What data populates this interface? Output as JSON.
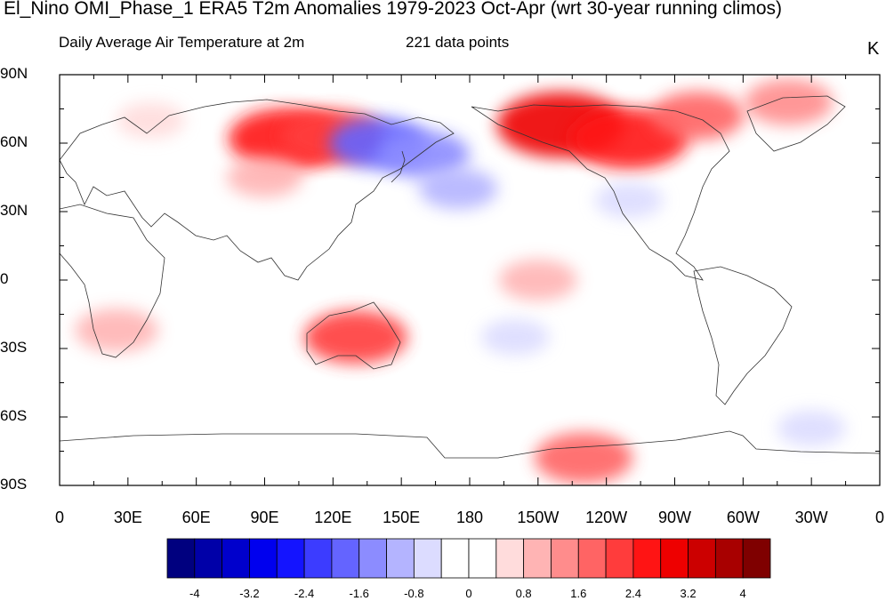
{
  "title": "El_Nino OMI_Phase_1 ERA5 T2m Anomalies 1979-2023 Oct-Apr (wrt 30-year running climos)",
  "subtitle_left": "Daily Average Air Temperature at 2m",
  "subtitle_center": "221 data points",
  "units": "K",
  "lat_ticks": [
    "90N",
    "60N",
    "30N",
    "0",
    "30S",
    "60S",
    "90S"
  ],
  "lon_ticks": [
    "0",
    "30E",
    "60E",
    "90E",
    "120E",
    "150E",
    "180",
    "150W",
    "120W",
    "90W",
    "60W",
    "30W",
    "0"
  ],
  "colorbar": {
    "colors": [
      "#00007f",
      "#0000a8",
      "#0000cc",
      "#0000ee",
      "#1414ff",
      "#3c3cff",
      "#6464ff",
      "#8c8cff",
      "#b4b4ff",
      "#dcdcff",
      "#ffffff",
      "#ffffff",
      "#ffdcdc",
      "#ffb4b4",
      "#ff8c8c",
      "#ff6464",
      "#ff3c3c",
      "#ff1414",
      "#ee0000",
      "#cc0000",
      "#a80000",
      "#7f0000"
    ],
    "labels": [
      "-4",
      "-3.2",
      "-2.4",
      "-1.6",
      "-0.8",
      "0",
      "0.8",
      "1.6",
      "2.4",
      "3.2",
      "4"
    ]
  },
  "anomalies": [
    {
      "lon": 40,
      "lat": 70,
      "value": 0.6
    },
    {
      "lon": 100,
      "lat": 62,
      "value": 2.6
    },
    {
      "lon": 120,
      "lat": 63,
      "value": 2.0
    },
    {
      "lon": 90,
      "lat": 45,
      "value": 0.9
    },
    {
      "lon": 140,
      "lat": 60,
      "value": -1.8
    },
    {
      "lon": 160,
      "lat": 55,
      "value": -1.5
    },
    {
      "lon": 175,
      "lat": 40,
      "value": -1.0
    },
    {
      "lon": 220,
      "lat": 68,
      "value": 3.0
    },
    {
      "lon": 250,
      "lat": 62,
      "value": 2.6
    },
    {
      "lon": 280,
      "lat": 72,
      "value": 1.6
    },
    {
      "lon": 320,
      "lat": 78,
      "value": 1.4
    },
    {
      "lon": 250,
      "lat": 35,
      "value": -0.6
    },
    {
      "lon": 210,
      "lat": 0,
      "value": 1.0
    },
    {
      "lon": 130,
      "lat": -25,
      "value": 2.0
    },
    {
      "lon": 25,
      "lat": -22,
      "value": 1.2
    },
    {
      "lon": 230,
      "lat": -78,
      "value": 1.8
    },
    {
      "lon": 200,
      "lat": -25,
      "value": -0.6
    },
    {
      "lon": 330,
      "lat": -65,
      "value": -0.6
    }
  ]
}
